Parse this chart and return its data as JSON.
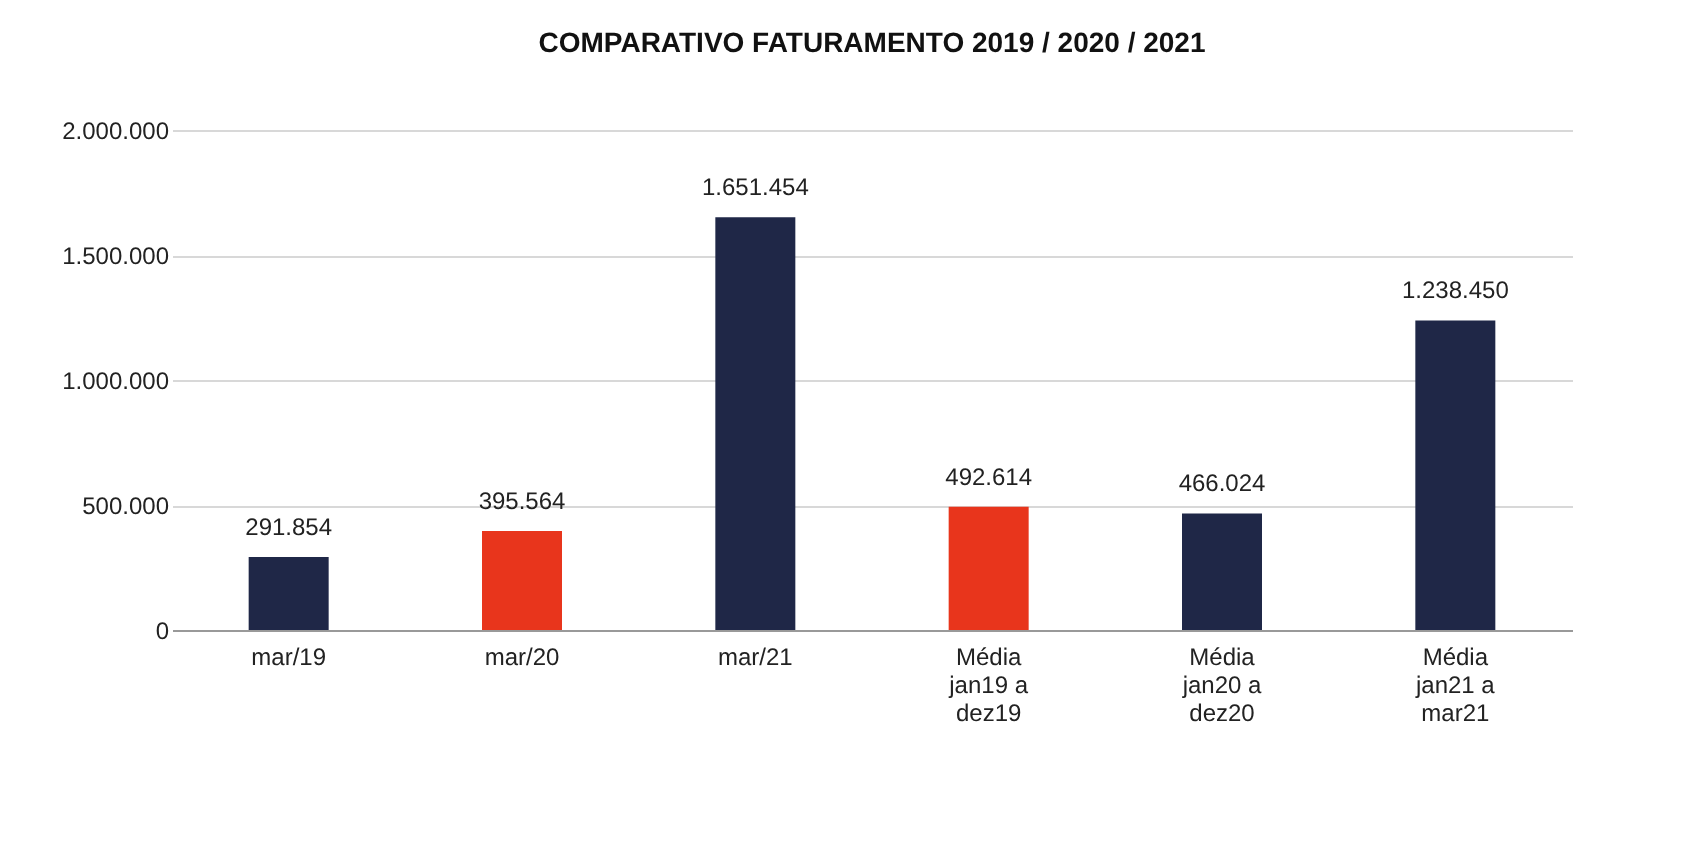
{
  "chart_data": {
    "type": "bar",
    "title": "COMPARATIVO FATURAMENTO 2019 / 2020 / 2021",
    "categories": [
      "mar/19",
      "mar/20",
      "mar/21",
      "Média\njan19 a\ndez19",
      "Média\njan20 a\ndez20",
      "Média\njan21 a\nmar21"
    ],
    "values": [
      291854,
      395564,
      1651454,
      492614,
      466024,
      1238450
    ],
    "colors": [
      "#1f2747",
      "#e8351c",
      "#1f2747",
      "#e8351c",
      "#1f2747",
      "#1f2747"
    ],
    "ylim": [
      0,
      2000000
    ],
    "yticks": [
      {
        "value": 0,
        "label": "0"
      },
      {
        "value": 500000,
        "label": "500.000"
      },
      {
        "value": 1000000,
        "label": "1.000.000"
      },
      {
        "value": 1500000,
        "label": "1.500.000"
      },
      {
        "value": 2000000,
        "label": "2.000.000"
      }
    ],
    "value_labels": [
      "291.854",
      "395.564",
      "1.651.454",
      "492.614",
      "466.024",
      "1.238.450"
    ],
    "grid": true
  }
}
